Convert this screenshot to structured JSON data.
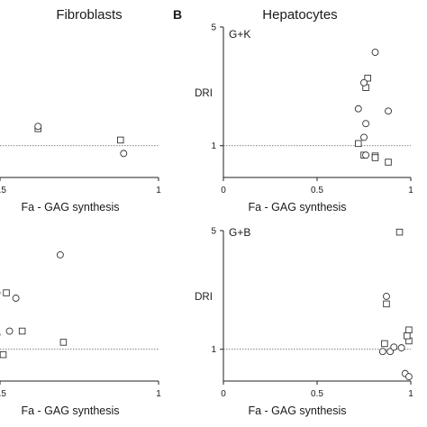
{
  "header": {
    "left_title": "Fibroblasts",
    "right_letter": "B",
    "right_title": "Hepatocytes"
  },
  "chart_data": [
    {
      "type": "scatter",
      "title": "Fibroblasts",
      "panel": "top-left",
      "xlabel": "Fa - GAG synthesis",
      "ylabel": "",
      "y_scale": "log",
      "xlim": [
        0,
        1
      ],
      "ylim": [
        0.65,
        5
      ],
      "reference_line_y": 1,
      "x_ticks": [
        {
          "value": 0.5,
          "label": "0.5"
        },
        {
          "value": 1,
          "label": "1"
        }
      ],
      "series": [
        {
          "marker": "square",
          "points": [
            [
              0.0,
              3.6
            ],
            [
              0.02,
              1.65
            ],
            [
              0.39,
              1.25
            ],
            [
              0.41,
              1.02
            ],
            [
              0.62,
              1.26
            ],
            [
              0.88,
              1.08
            ]
          ]
        },
        {
          "marker": "circle",
          "points": [
            [
              0.03,
              2.4
            ],
            [
              0.02,
              1.4
            ],
            [
              0.05,
              1.15
            ],
            [
              0.39,
              2.5
            ],
            [
              0.62,
              1.3
            ],
            [
              0.89,
              0.9
            ]
          ]
        }
      ]
    },
    {
      "type": "scatter",
      "title": "",
      "panel": "top-right",
      "corner_label": "G+K",
      "xlabel": "Fa - GAG synthesis",
      "ylabel": "DRI",
      "y_scale": "log",
      "xlim": [
        0,
        1
      ],
      "ylim": [
        0.65,
        5
      ],
      "reference_line_y": 1,
      "x_ticks": [
        {
          "value": 0,
          "label": "0"
        },
        {
          "value": 0.5,
          "label": "0.5"
        },
        {
          "value": 1,
          "label": "1"
        }
      ],
      "y_ticks": [
        {
          "value": 1,
          "label": "1"
        },
        {
          "value": 5,
          "label": "5"
        }
      ],
      "series": [
        {
          "marker": "square",
          "points": [
            [
              0.77,
              2.5
            ],
            [
              0.76,
              2.2
            ],
            [
              0.72,
              1.03
            ],
            [
              0.75,
              0.88
            ],
            [
              0.81,
              0.87
            ],
            [
              0.81,
              0.85
            ],
            [
              0.88,
              0.8
            ]
          ]
        },
        {
          "marker": "circle",
          "points": [
            [
              0.81,
              3.55
            ],
            [
              0.75,
              2.35
            ],
            [
              0.72,
              1.65
            ],
            [
              0.76,
              1.35
            ],
            [
              0.75,
              1.12
            ],
            [
              0.88,
              1.6
            ],
            [
              0.76,
              0.88
            ]
          ]
        }
      ]
    },
    {
      "type": "scatter",
      "title": "",
      "panel": "bottom-left",
      "xlabel": "Fa - GAG synthesis",
      "ylabel": "",
      "y_scale": "log",
      "xlim": [
        0,
        1
      ],
      "ylim": [
        0.65,
        5
      ],
      "reference_line_y": 1,
      "x_ticks": [
        {
          "value": 0.5,
          "label": "0.5"
        },
        {
          "value": 1,
          "label": "1"
        }
      ],
      "series": [
        {
          "marker": "square",
          "points": [
            [
              0.02,
              3.9
            ],
            [
              0.52,
              2.15
            ],
            [
              0.41,
              1.05
            ],
            [
              0.1,
              1.42
            ],
            [
              0.18,
              1.42
            ],
            [
              0.57,
              1.28
            ],
            [
              0.7,
              1.1
            ],
            [
              0.51,
              0.93
            ]
          ]
        },
        {
          "marker": "circle",
          "points": [
            [
              0.06,
              3.9
            ],
            [
              0.69,
              3.6
            ],
            [
              0.49,
              2.15
            ],
            [
              0.55,
              2.0
            ],
            [
              0.07,
              1.12
            ],
            [
              0.41,
              1.3
            ],
            [
              0.49,
              1.22
            ],
            [
              0.53,
              1.28
            ],
            [
              0.11,
              1.12
            ]
          ]
        }
      ]
    },
    {
      "type": "scatter",
      "title": "",
      "panel": "bottom-right",
      "corner_label": "G+B",
      "xlabel": "Fa - GAG synthesis",
      "ylabel": "DRI",
      "y_scale": "log",
      "xlim": [
        0,
        1
      ],
      "ylim": [
        0.65,
        5
      ],
      "reference_line_y": 1,
      "x_ticks": [
        {
          "value": 0,
          "label": "0"
        },
        {
          "value": 0.5,
          "label": "0.5"
        },
        {
          "value": 1,
          "label": "1"
        }
      ],
      "y_ticks": [
        {
          "value": 1,
          "label": "1"
        },
        {
          "value": 5,
          "label": "5"
        }
      ],
      "series": [
        {
          "marker": "square",
          "points": [
            [
              0.94,
              4.9
            ],
            [
              0.87,
              1.85
            ],
            [
              0.86,
              1.08
            ],
            [
              0.99,
              1.3
            ],
            [
              0.99,
              1.12
            ],
            [
              0.98,
              1.2
            ]
          ]
        },
        {
          "marker": "circle",
          "points": [
            [
              0.87,
              2.05
            ],
            [
              0.85,
              0.97
            ],
            [
              0.89,
              0.97
            ],
            [
              0.91,
              1.03
            ],
            [
              0.95,
              1.02
            ],
            [
              0.97,
              0.72
            ],
            [
              0.99,
              0.69
            ]
          ]
        }
      ]
    }
  ]
}
